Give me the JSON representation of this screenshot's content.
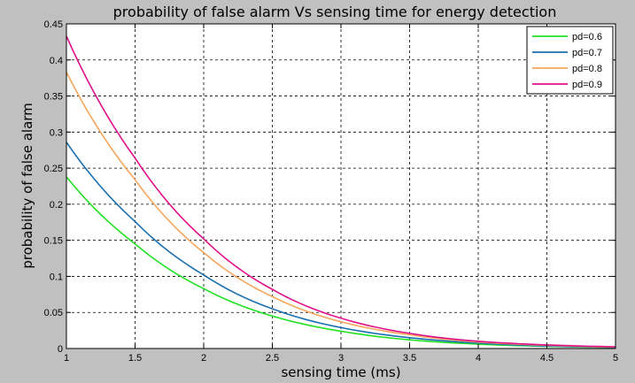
{
  "chart_data": {
    "type": "line",
    "title": "probability of false alarm Vs sensing time for energy detection",
    "xlabel": "sensing time (ms)",
    "ylabel": "probability of false alarm",
    "xlim": [
      1,
      5
    ],
    "ylim": [
      0,
      0.45
    ],
    "xticks": [
      "1",
      "1.5",
      "2",
      "2.5",
      "3",
      "3.5",
      "4",
      "4.5",
      "5"
    ],
    "yticks": [
      "0",
      "0.05",
      "0.1",
      "0.15",
      "0.2",
      "0.25",
      "0.3",
      "0.35",
      "0.4",
      "0.45"
    ],
    "grid": true,
    "legend_position": "top-right",
    "x": [
      1,
      1.5,
      2,
      2.5,
      3,
      3.5,
      4,
      4.5,
      5
    ],
    "series": [
      {
        "name": "pd=0.6",
        "color": "#22e022",
        "values": [
          0.238,
          0.145,
          0.083,
          0.045,
          0.024,
          0.012,
          0.006,
          0.003,
          0.0015
        ]
      },
      {
        "name": "pd=0.7",
        "color": "#1a6fb0",
        "values": [
          0.286,
          0.176,
          0.102,
          0.055,
          0.029,
          0.015,
          0.0075,
          0.0035,
          0.0018
        ]
      },
      {
        "name": "pd=0.8",
        "color": "#f5a65b",
        "values": [
          0.383,
          0.234,
          0.133,
          0.072,
          0.037,
          0.019,
          0.009,
          0.0045,
          0.002
        ]
      },
      {
        "name": "pd=0.9",
        "color": "#e0108a",
        "values": [
          0.433,
          0.264,
          0.152,
          0.082,
          0.042,
          0.021,
          0.01,
          0.005,
          0.0024
        ]
      }
    ]
  }
}
